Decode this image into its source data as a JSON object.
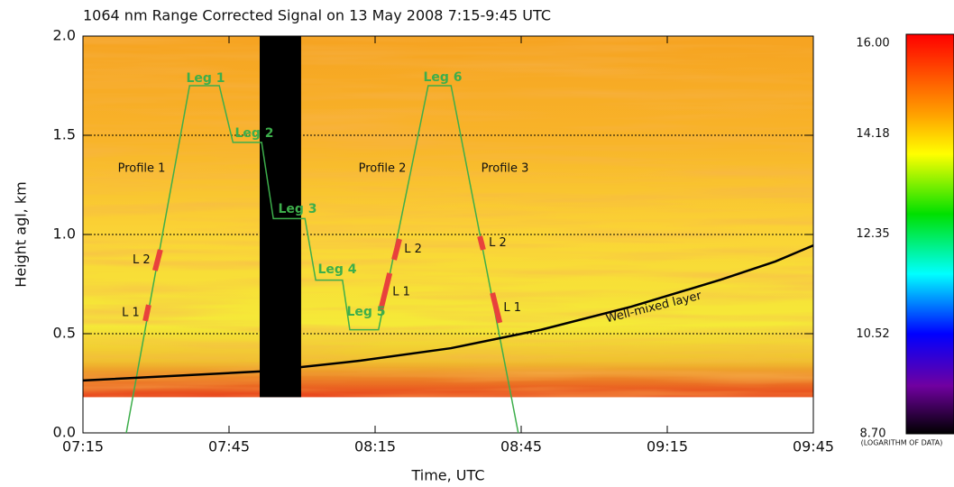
{
  "chart_data": {
    "type": "line",
    "title": "1064 nm Range Corrected Signal on 13 May 2008 7:15-9:45 UTC",
    "x_label": "Time, UTC",
    "y_label": "Height agl, km",
    "xlim": [
      435,
      585
    ],
    "xticks": [
      {
        "value": 435,
        "label": "07:15"
      },
      {
        "value": 465,
        "label": "07:45"
      },
      {
        "value": 495,
        "label": "08:15"
      },
      {
        "value": 525,
        "label": "08:45"
      },
      {
        "value": 555,
        "label": "09:15"
      },
      {
        "value": 585,
        "label": "09:45"
      }
    ],
    "ylim": [
      0,
      2
    ],
    "yticks": [
      {
        "value": 0,
        "label": "0.0"
      },
      0.5,
      {
        "value": 1,
        "label": "1.0"
      },
      1.5,
      {
        "value": 2,
        "label": "2.0"
      }
    ],
    "grid": true,
    "series": [
      {
        "color": "#3dae4b",
        "x": [
          443.9,
          456.9,
          463.0,
          465.8,
          471.7,
          474.1,
          480.6,
          482.8,
          488.3,
          489.8,
          495.7,
          505.9,
          510.6,
          524.4
        ],
        "values": [
          0,
          1.75,
          1.75,
          1.464,
          1.464,
          1.08,
          1.08,
          0.77,
          0.77,
          0.52,
          0.52,
          1.75,
          1.75,
          0
        ]
      },
      {
        "color": "#000000",
        "x": [
          435,
          471.7,
          492,
          510.6,
          529.1,
          547.6,
          566.1,
          577.2,
          585
        ],
        "values": [
          0.264,
          0.31,
          0.364,
          0.427,
          0.52,
          0.636,
          0.773,
          0.864,
          0.945
        ]
      }
    ],
    "markers": [
      {
        "name": "L 1",
        "x": [
          447.8,
          448.5
        ],
        "y": [
          0.564,
          0.645
        ]
      },
      {
        "name": "L 2",
        "x": [
          449.8,
          450.9
        ],
        "y": [
          0.818,
          0.923
        ]
      },
      {
        "name": "L 1",
        "x": [
          496.1,
          498.0
        ],
        "y": [
          0.614,
          0.805
        ]
      },
      {
        "name": "L 2",
        "x": [
          498.9,
          500.0
        ],
        "y": [
          0.873,
          0.977
        ]
      },
      {
        "name": "L 2",
        "x": [
          516.5,
          517.2
        ],
        "y": [
          0.991,
          0.923
        ]
      },
      {
        "name": "L 1",
        "x": [
          519.1,
          520.6
        ],
        "y": [
          0.705,
          0.555
        ]
      }
    ],
    "marker_color": "#e8413c",
    "data_gap": {
      "x": [
        471.3,
        479.8
      ],
      "y": [
        0.18,
        2.0
      ]
    },
    "annotations": [
      "Leg 1",
      "Leg 2",
      "Leg 3",
      "Leg 4",
      "Leg 5",
      "Leg 6",
      "Profile 1",
      "Profile 2",
      "Profile 3",
      "Well-mixed layer"
    ],
    "colorbar": {
      "lim": [
        8.7,
        16
      ],
      "ticks": [
        {
          "value": 16,
          "label": "16.00"
        },
        14.18,
        12.35,
        10.52,
        {
          "value": 8.7,
          "label": "8.70"
        }
      ],
      "label": "(LOGARITHM OF DATA)"
    }
  }
}
